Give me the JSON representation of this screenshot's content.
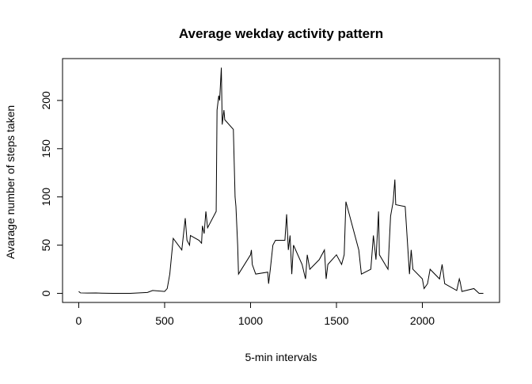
{
  "chart_data": {
    "type": "line",
    "title": "Average wekday activity pattern",
    "x_label": "5-min intervals",
    "y_label": "Avarage number of steps taken",
    "x": [
      0,
      10,
      50,
      100,
      200,
      300,
      400,
      430,
      500,
      515,
      530,
      550,
      600,
      620,
      630,
      645,
      650,
      700,
      715,
      720,
      730,
      740,
      750,
      800,
      805,
      815,
      820,
      830,
      835,
      845,
      850,
      900,
      910,
      915,
      925,
      930,
      1000,
      1005,
      1010,
      1030,
      1100,
      1105,
      1115,
      1130,
      1145,
      1200,
      1210,
      1220,
      1230,
      1240,
      1250,
      1300,
      1320,
      1330,
      1345,
      1400,
      1430,
      1440,
      1450,
      1500,
      1530,
      1545,
      1555,
      1600,
      1630,
      1645,
      1700,
      1715,
      1730,
      1745,
      1750,
      1800,
      1815,
      1830,
      1840,
      1845,
      1900,
      1925,
      1935,
      1945,
      2000,
      2010,
      2030,
      2045,
      2100,
      2115,
      2130,
      2200,
      2215,
      2220,
      2230,
      2300,
      2330,
      2355
    ],
    "series": [
      {
        "name": "steps",
        "color": "#000000",
        "values": [
          2,
          0.5,
          0.3,
          0.4,
          0,
          0,
          1,
          3,
          2,
          5,
          20,
          57,
          45,
          78,
          55,
          50,
          60,
          55,
          52,
          70,
          62,
          85,
          68,
          85,
          190,
          205,
          200,
          234,
          175,
          190,
          180,
          170,
          100,
          90,
          50,
          20,
          40,
          45,
          30,
          20,
          22,
          10,
          25,
          50,
          55,
          55,
          82,
          45,
          60,
          20,
          50,
          30,
          15,
          40,
          25,
          35,
          45,
          15,
          30,
          40,
          30,
          40,
          95,
          65,
          45,
          20,
          25,
          60,
          35,
          85,
          40,
          25,
          80,
          95,
          118,
          92,
          90,
          20,
          45,
          25,
          15,
          5,
          10,
          25,
          15,
          30,
          10,
          3,
          15,
          12,
          2,
          5,
          0,
          0
        ]
      }
    ],
    "xlim": [
      -94.2,
      2449.2
    ],
    "ylim": [
      -9.4,
      243.4
    ],
    "xticks": [
      0,
      500,
      1000,
      1500,
      2000
    ],
    "yticks": [
      0,
      50,
      100,
      150,
      200
    ]
  }
}
